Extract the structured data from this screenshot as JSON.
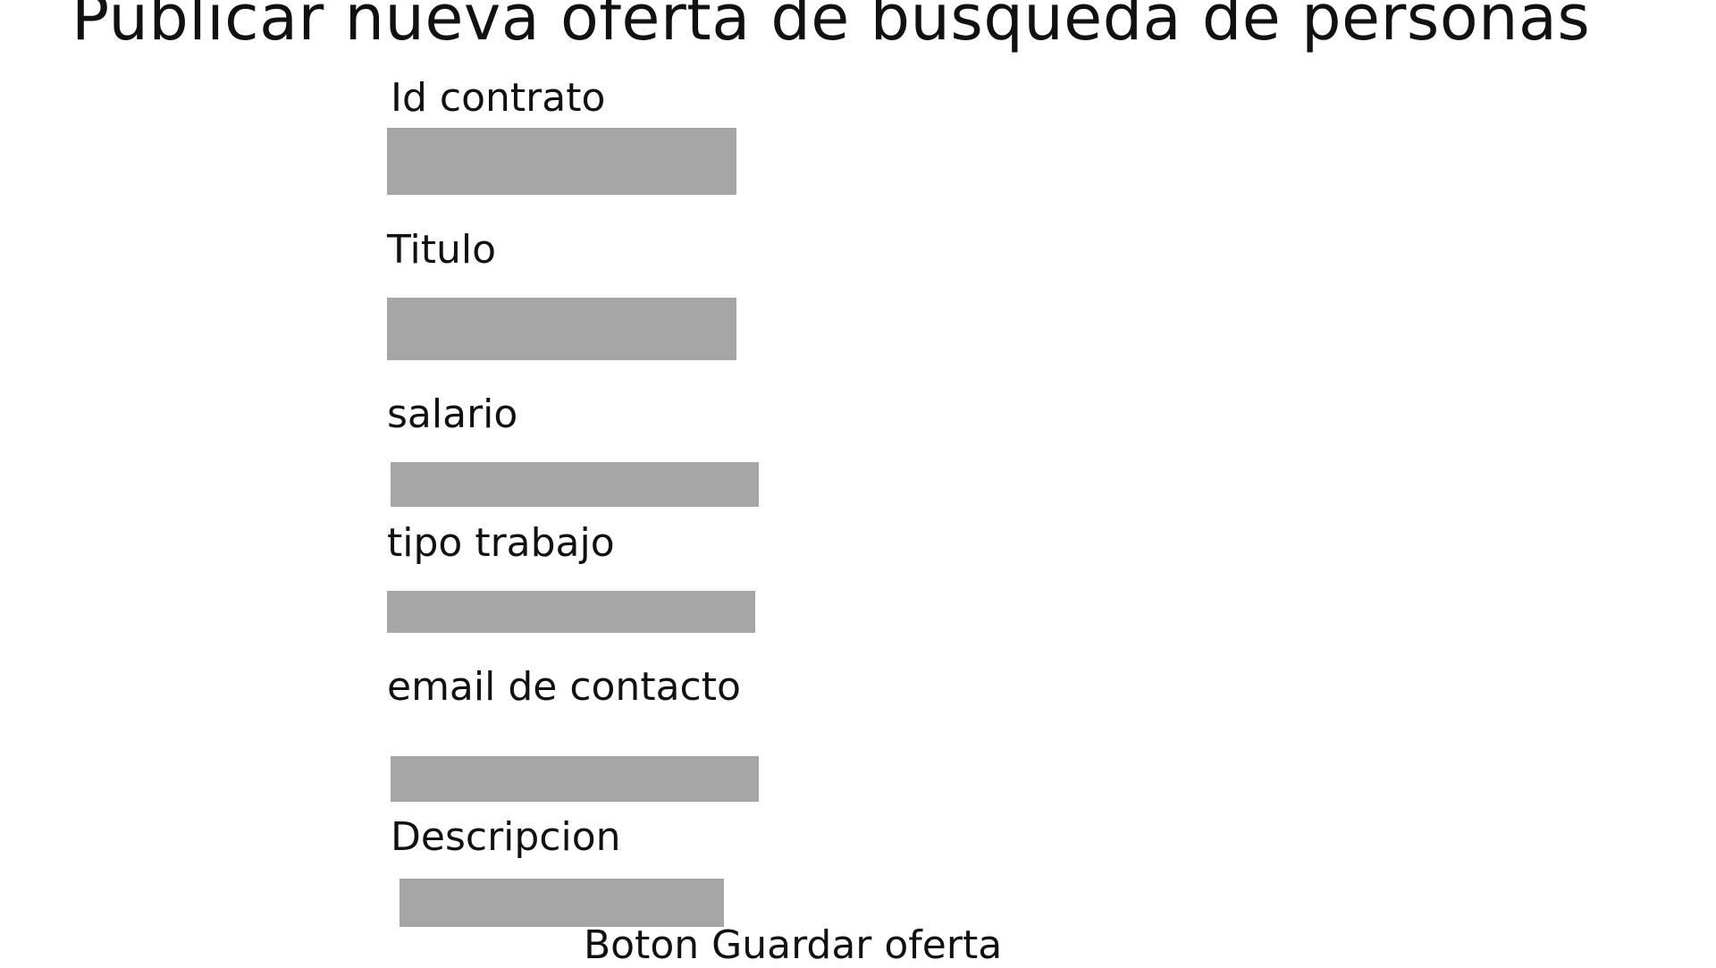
{
  "header": {
    "title": "Publicar nueva oferta de busqueda de personas"
  },
  "form": {
    "fields": [
      {
        "label": "Id contrato"
      },
      {
        "label": "Titulo"
      },
      {
        "label": "salario"
      },
      {
        "label": "tipo trabajo"
      },
      {
        "label": "email de contacto"
      },
      {
        "label": "Descripcion"
      }
    ],
    "save_label": "Boton Guardar oferta"
  },
  "colors": {
    "field_background": "#a6a6a6",
    "page_background": "#ffffff",
    "text": "#111111"
  }
}
